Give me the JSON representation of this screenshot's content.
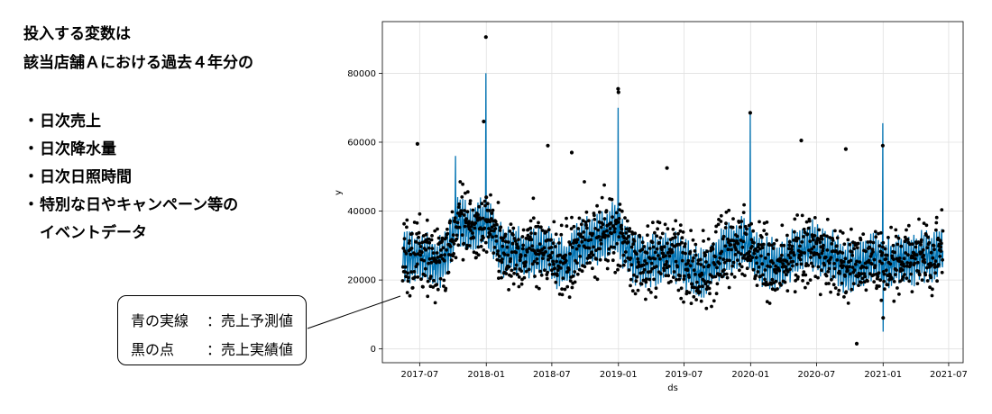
{
  "heading": {
    "line1": "投入する変数は",
    "line2": "該当店舗Ａにおける過去４年分の"
  },
  "bullets": [
    {
      "marker": "・",
      "text": " 日次売上"
    },
    {
      "marker": "・",
      "text": "日次降水量"
    },
    {
      "marker": "・",
      "text": "日次日照時間"
    },
    {
      "marker": "・",
      "text": "特別な日やキャンペーン等の"
    },
    {
      "marker": "",
      "text": "イベントデータ"
    }
  ],
  "legend": {
    "blue_key": "青の実線",
    "blue_value": "：売上予測値",
    "black_key": "黒の点",
    "black_value": "：売上実績値"
  },
  "colors": {
    "forecast": "#0072B2",
    "actual": "#000000"
  },
  "chart_data": {
    "type": "scatter",
    "xlabel": "ds",
    "ylabel": "y",
    "x_range": [
      "2017-03-20",
      "2021-08-10"
    ],
    "y_range": [
      -4000,
      95000
    ],
    "grid": true,
    "x_ticks": [
      "2017-07",
      "2018-01",
      "2018-07",
      "2019-01",
      "2019-07",
      "2020-01",
      "2020-07",
      "2021-01",
      "2021-07"
    ],
    "y_ticks": [
      0,
      20000,
      40000,
      60000,
      80000
    ],
    "data_start": "2017-05-15",
    "data_end": "2021-06-15",
    "series": [
      {
        "name": "売上予測値",
        "kind": "line",
        "monthly_baseline": [
          [
            "2017-05",
            27000
          ],
          [
            "2017-06",
            26000
          ],
          [
            "2017-07",
            27000
          ],
          [
            "2017-08",
            24000
          ],
          [
            "2017-09",
            27000
          ],
          [
            "2017-10",
            38000
          ],
          [
            "2017-11",
            34000
          ],
          [
            "2017-12",
            36000
          ],
          [
            "2018-01",
            34000
          ],
          [
            "2018-02",
            28000
          ],
          [
            "2018-03",
            28000
          ],
          [
            "2018-04",
            27000
          ],
          [
            "2018-05",
            28000
          ],
          [
            "2018-06",
            29000
          ],
          [
            "2018-07",
            24000
          ],
          [
            "2018-08",
            25000
          ],
          [
            "2018-09",
            30000
          ],
          [
            "2018-10",
            31000
          ],
          [
            "2018-11",
            32000
          ],
          [
            "2018-12",
            35000
          ],
          [
            "2019-01",
            30000
          ],
          [
            "2019-02",
            26000
          ],
          [
            "2019-03",
            25000
          ],
          [
            "2019-04",
            26000
          ],
          [
            "2019-05",
            27000
          ],
          [
            "2019-06",
            26000
          ],
          [
            "2019-07",
            24000
          ],
          [
            "2019-08",
            21000
          ],
          [
            "2019-09",
            24000
          ],
          [
            "2019-10",
            28000
          ],
          [
            "2019-11",
            29000
          ],
          [
            "2019-12",
            31000
          ],
          [
            "2020-01",
            26000
          ],
          [
            "2020-02",
            25000
          ],
          [
            "2020-03",
            24000
          ],
          [
            "2020-04",
            26000
          ],
          [
            "2020-05",
            28000
          ],
          [
            "2020-06",
            30000
          ],
          [
            "2020-07",
            27000
          ],
          [
            "2020-08",
            27000
          ],
          [
            "2020-09",
            23000
          ],
          [
            "2020-10",
            24000
          ],
          [
            "2020-11",
            25000
          ],
          [
            "2020-12",
            26000
          ],
          [
            "2021-01",
            24000
          ],
          [
            "2021-02",
            26000
          ],
          [
            "2021-03",
            25000
          ],
          [
            "2021-04",
            27000
          ],
          [
            "2021-05",
            26000
          ],
          [
            "2021-06",
            29000
          ]
        ],
        "spikes": [
          [
            "2017-12-31",
            80000
          ],
          [
            "2018-12-31",
            70000
          ],
          [
            "2019-12-31",
            68000
          ],
          [
            "2020-12-31",
            65500
          ],
          [
            "2021-01-01",
            5000
          ],
          [
            "2017-10-08",
            56000
          ]
        ]
      },
      {
        "name": "売上実績値",
        "kind": "points",
        "highlights": [
          [
            "2017-12-31",
            90500
          ],
          [
            "2018-12-31",
            75500
          ],
          [
            "2019-01-01",
            74500
          ],
          [
            "2019-12-31",
            68500
          ],
          [
            "2020-12-31",
            59000
          ],
          [
            "2021-01-01",
            9000
          ],
          [
            "2020-10-20",
            1500
          ],
          [
            "2017-06-25",
            59500
          ],
          [
            "2020-05-20",
            60500
          ],
          [
            "2018-06-20",
            59000
          ],
          [
            "2018-08-25",
            57000
          ],
          [
            "2019-05-15",
            52500
          ],
          [
            "2020-09-20",
            58000
          ],
          [
            "2017-12-25",
            66000
          ],
          [
            "2018-01-01",
            44000
          ]
        ]
      }
    ]
  }
}
